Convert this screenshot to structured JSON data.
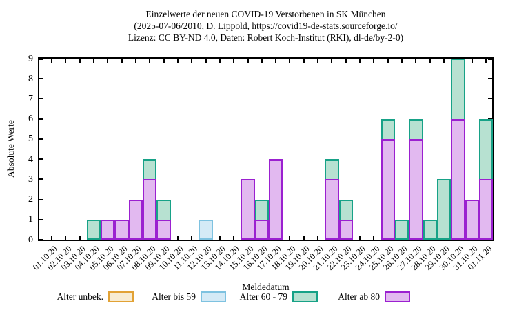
{
  "chart_data": {
    "type": "bar",
    "stacked": true,
    "title_lines": [
      "Einzelwerte der neuen COVID-19 Verstorbenen in SK München",
      "(2025-07-06/2010, D. Lippold, https://covid19-de-stats.sourceforge.io/",
      "Lizenz: CC BY-ND 4.0, Daten: Robert Koch-Institut (RKI), dl-de/by-2-0)"
    ],
    "xlabel": "Meldedatum",
    "ylabel": "Absolute Werte",
    "ylim": [
      0,
      9
    ],
    "ytick_step": 1,
    "grid": false,
    "legend_position": "bottom",
    "categories": [
      "01.10.20",
      "02.10.20",
      "03.10.20",
      "04.10.20",
      "05.10.20",
      "06.10.20",
      "07.10.20",
      "08.10.20",
      "09.10.20",
      "10.10.20",
      "11.10.20",
      "12.10.20",
      "13.10.20",
      "14.10.20",
      "15.10.20",
      "16.10.20",
      "17.10.20",
      "18.10.20",
      "19.10.20",
      "20.10.20",
      "21.10.20",
      "22.10.20",
      "23.10.20",
      "24.10.20",
      "25.10.20",
      "26.10.20",
      "27.10.20",
      "28.10.20",
      "29.10.20",
      "30.10.20",
      "31.10.20",
      "01.11.20"
    ],
    "series": [
      {
        "name": "Alter unbek.",
        "border_color": "#e2a235",
        "fill_color": "#f8ecd2",
        "values": [
          0,
          0,
          0,
          0,
          0,
          0,
          0,
          0,
          0,
          0,
          0,
          0,
          0,
          0,
          0,
          0,
          0,
          0,
          0,
          0,
          0,
          0,
          0,
          0,
          0,
          0,
          0,
          0,
          0,
          0,
          0,
          0
        ]
      },
      {
        "name": "Alter bis 59",
        "border_color": "#7ec2e0",
        "fill_color": "#d4eaf6",
        "values": [
          0,
          0,
          0,
          0,
          0,
          0,
          0,
          0,
          0,
          0,
          0,
          1,
          0,
          0,
          0,
          0,
          0,
          0,
          0,
          0,
          0,
          0,
          0,
          0,
          0,
          0,
          0,
          0,
          0,
          0,
          0,
          0
        ]
      },
      {
        "name": "Alter 60 - 79",
        "border_color": "#17a287",
        "fill_color": "#b7e1d1",
        "values": [
          0,
          0,
          0,
          1,
          0,
          0,
          0,
          1,
          1,
          0,
          0,
          0,
          0,
          0,
          0,
          1,
          0,
          0,
          0,
          0,
          1,
          1,
          0,
          0,
          1,
          1,
          1,
          1,
          3,
          3,
          0,
          3
        ]
      },
      {
        "name": "Alter ab 80",
        "border_color": "#9b20d0",
        "fill_color": "#e2b9f0",
        "values": [
          0,
          0,
          0,
          0,
          1,
          1,
          2,
          3,
          1,
          0,
          0,
          0,
          0,
          0,
          3,
          1,
          4,
          0,
          0,
          0,
          3,
          1,
          0,
          0,
          5,
          0,
          5,
          0,
          0,
          6,
          2,
          3
        ]
      }
    ],
    "stack_bottom_to_top": [
      "Alter ab 80",
      "Alter 60 - 79",
      "Alter bis 59",
      "Alter unbek."
    ]
  }
}
